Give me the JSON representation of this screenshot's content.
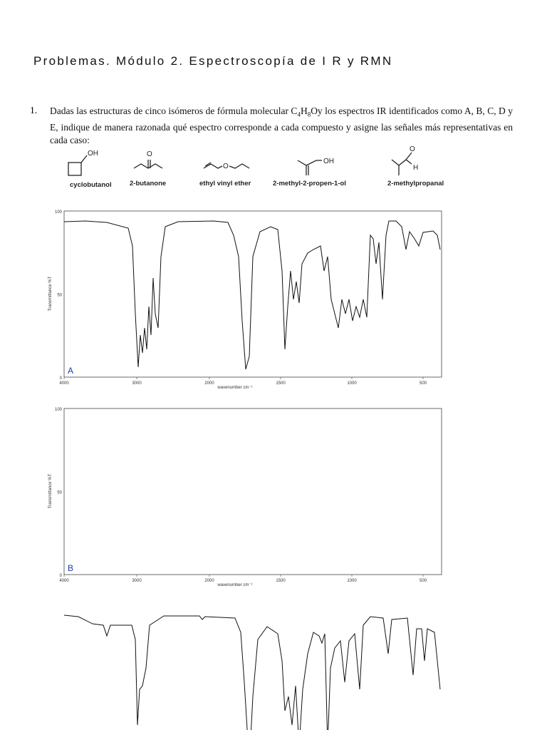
{
  "header": {
    "title": "Problemas. Módulo 2. Espectroscopía de I R y RMN"
  },
  "problem": {
    "number": "1.",
    "text_before": "Dadas las estructuras de cinco isómeros de fórmula molecular ",
    "formula": [
      "C",
      "4",
      "H",
      "8"
    ],
    "text_after": "Oy los espectros IR identificados como A, B, C, D y E, indique de manera razonada qué espectro corresponde a cada compuesto y asigne las señales más representativas en cada caso:"
  },
  "compounds": [
    {
      "label": "cyclobutanol",
      "atoms": [
        "OH"
      ]
    },
    {
      "label": "2-butanone",
      "atoms": [
        "O"
      ]
    },
    {
      "label": "ethyl vinyl ether",
      "atoms": [
        "O"
      ]
    },
    {
      "label": "2-methyl-2-propen-1-ol",
      "atoms": [
        "OH"
      ]
    },
    {
      "label": "2-methylpropanal",
      "atoms": [
        "O",
        "H"
      ]
    }
  ],
  "spectra": [
    {
      "letter": "A",
      "y_label": "Transmittance %T",
      "x_label": "wavenumber cm⁻¹",
      "yticks": [
        "100",
        "50",
        "0"
      ],
      "xticks": [
        "4000",
        "3000",
        "2000",
        "1500",
        "1000",
        "500"
      ]
    },
    {
      "letter": "B",
      "y_label": "Transmittance %T",
      "x_label": "wavenumber cm⁻¹",
      "yticks": [
        "100",
        "50",
        "0"
      ],
      "xticks": [
        "4000",
        "3000",
        "2000",
        "1500",
        "1000",
        "500"
      ]
    }
  ]
}
